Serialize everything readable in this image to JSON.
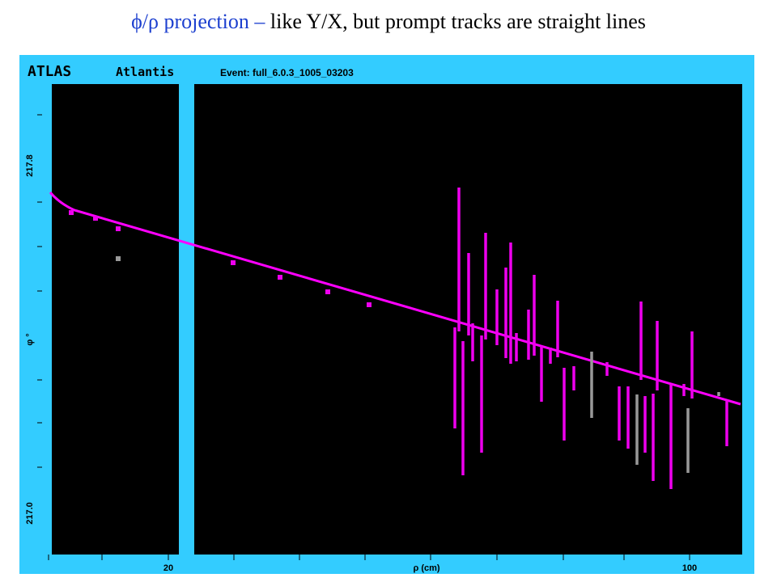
{
  "slide": {
    "title_highlight": "ϕ/ρ projection –",
    "title_rest": " like Y/X, but prompt tracks are straight lines"
  },
  "display": {
    "header": {
      "brand": "ATLAS",
      "app": "Atlantis",
      "event": "Event: full_6.0.3_1005_03203"
    },
    "y_axis": {
      "label": "φ °",
      "top_label": "217.8",
      "bottom_label": "217.0"
    },
    "x_axis": {
      "label": "ρ (cm)",
      "left_label": "20",
      "right_label": "100"
    }
  }
}
